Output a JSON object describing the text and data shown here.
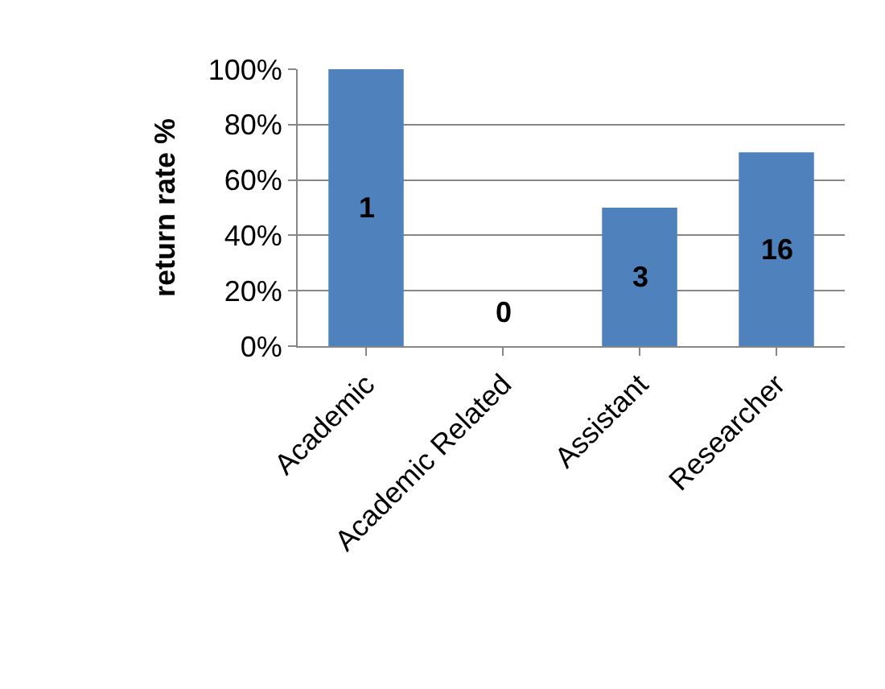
{
  "chart_data": {
    "type": "bar",
    "ylabel": "return rate %",
    "categories": [
      "Academic",
      "Academic Related",
      "Assistant",
      "Researcher"
    ],
    "values": [
      100,
      0,
      50,
      70
    ],
    "color": "#4f81bd",
    "annotations": [
      "1",
      "0",
      "3",
      "16"
    ],
    "ylim": [
      0,
      100
    ],
    "yticks": [
      {
        "value": 0,
        "label": "0%"
      },
      {
        "value": 20,
        "label": "20%"
      },
      {
        "value": 40,
        "label": "40%"
      },
      {
        "value": 60,
        "label": "60%"
      },
      {
        "value": 80,
        "label": "80%"
      },
      {
        "value": 100,
        "label": "100%"
      }
    ],
    "grid": "y",
    "legend": false
  }
}
